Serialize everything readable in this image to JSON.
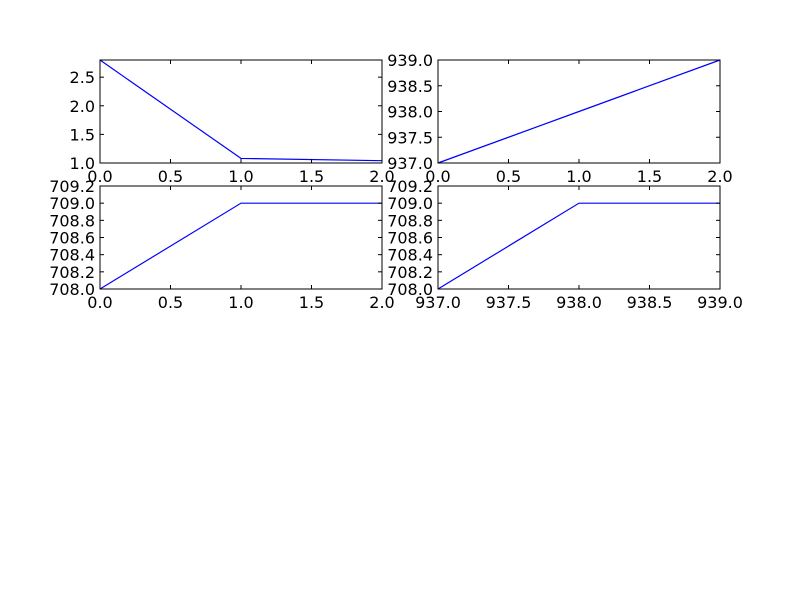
{
  "chart_data": [
    {
      "type": "line",
      "x": [
        0,
        1,
        2
      ],
      "xlim": [
        0,
        2
      ],
      "xticks": [
        0,
        0.5,
        1,
        1.5,
        2
      ],
      "xtick_labels": [
        "0.0",
        "0.5",
        "1.0",
        "1.5",
        "2.0"
      ],
      "ylim": [
        1.0,
        2.8
      ],
      "yticks": [
        1.0,
        1.5,
        2.0,
        2.5
      ],
      "ytick_labels": [
        "1.0",
        "1.5",
        "2.0",
        "2.5"
      ],
      "series": [
        {
          "values": [
            2.8,
            1.08,
            1.04
          ],
          "color": "#0000ff"
        }
      ],
      "grid": false
    },
    {
      "type": "line",
      "x": [
        0,
        1,
        2
      ],
      "xlim": [
        0,
        2
      ],
      "xticks": [
        0,
        0.5,
        1,
        1.5,
        2
      ],
      "xtick_labels": [
        "0.0",
        "0.5",
        "1.0",
        "1.5",
        "2.0"
      ],
      "ylim": [
        937.0,
        939.0
      ],
      "yticks": [
        937.0,
        937.5,
        938.0,
        938.5,
        939.0
      ],
      "ytick_labels": [
        "937.0",
        "937.5",
        "938.0",
        "938.5",
        "939.0"
      ],
      "series": [
        {
          "values": [
            937,
            938,
            939
          ],
          "color": "#0000ff"
        }
      ],
      "grid": false
    },
    {
      "type": "line",
      "x": [
        0,
        1,
        2
      ],
      "xlim": [
        0,
        2
      ],
      "xticks": [
        0,
        0.5,
        1,
        1.5,
        2
      ],
      "xtick_labels": [
        "0.0",
        "0.5",
        "1.0",
        "1.5",
        "2.0"
      ],
      "ylim": [
        708.0,
        709.2
      ],
      "yticks": [
        708.0,
        708.2,
        708.4,
        708.6,
        708.8,
        709.0,
        709.2
      ],
      "ytick_labels": [
        "708.0",
        "708.2",
        "708.4",
        "708.6",
        "708.8",
        "709.0",
        "709.2"
      ],
      "series": [
        {
          "values": [
            708,
            709,
            709
          ],
          "color": "#0000ff"
        }
      ],
      "grid": false
    },
    {
      "type": "line",
      "x": [
        937,
        938,
        939
      ],
      "xlim": [
        937,
        939
      ],
      "xticks": [
        937,
        937.5,
        938,
        938.5,
        939
      ],
      "xtick_labels": [
        "937.0",
        "937.5",
        "938.0",
        "938.5",
        "939.0"
      ],
      "ylim": [
        708.0,
        709.2
      ],
      "yticks": [
        708.0,
        708.2,
        708.4,
        708.6,
        708.8,
        709.0,
        709.2
      ],
      "ytick_labels": [
        "708.0",
        "708.2",
        "708.4",
        "708.6",
        "708.8",
        "709.0",
        "709.2"
      ],
      "series": [
        {
          "values": [
            708,
            709,
            709
          ],
          "color": "#0000ff"
        }
      ],
      "grid": false
    }
  ]
}
